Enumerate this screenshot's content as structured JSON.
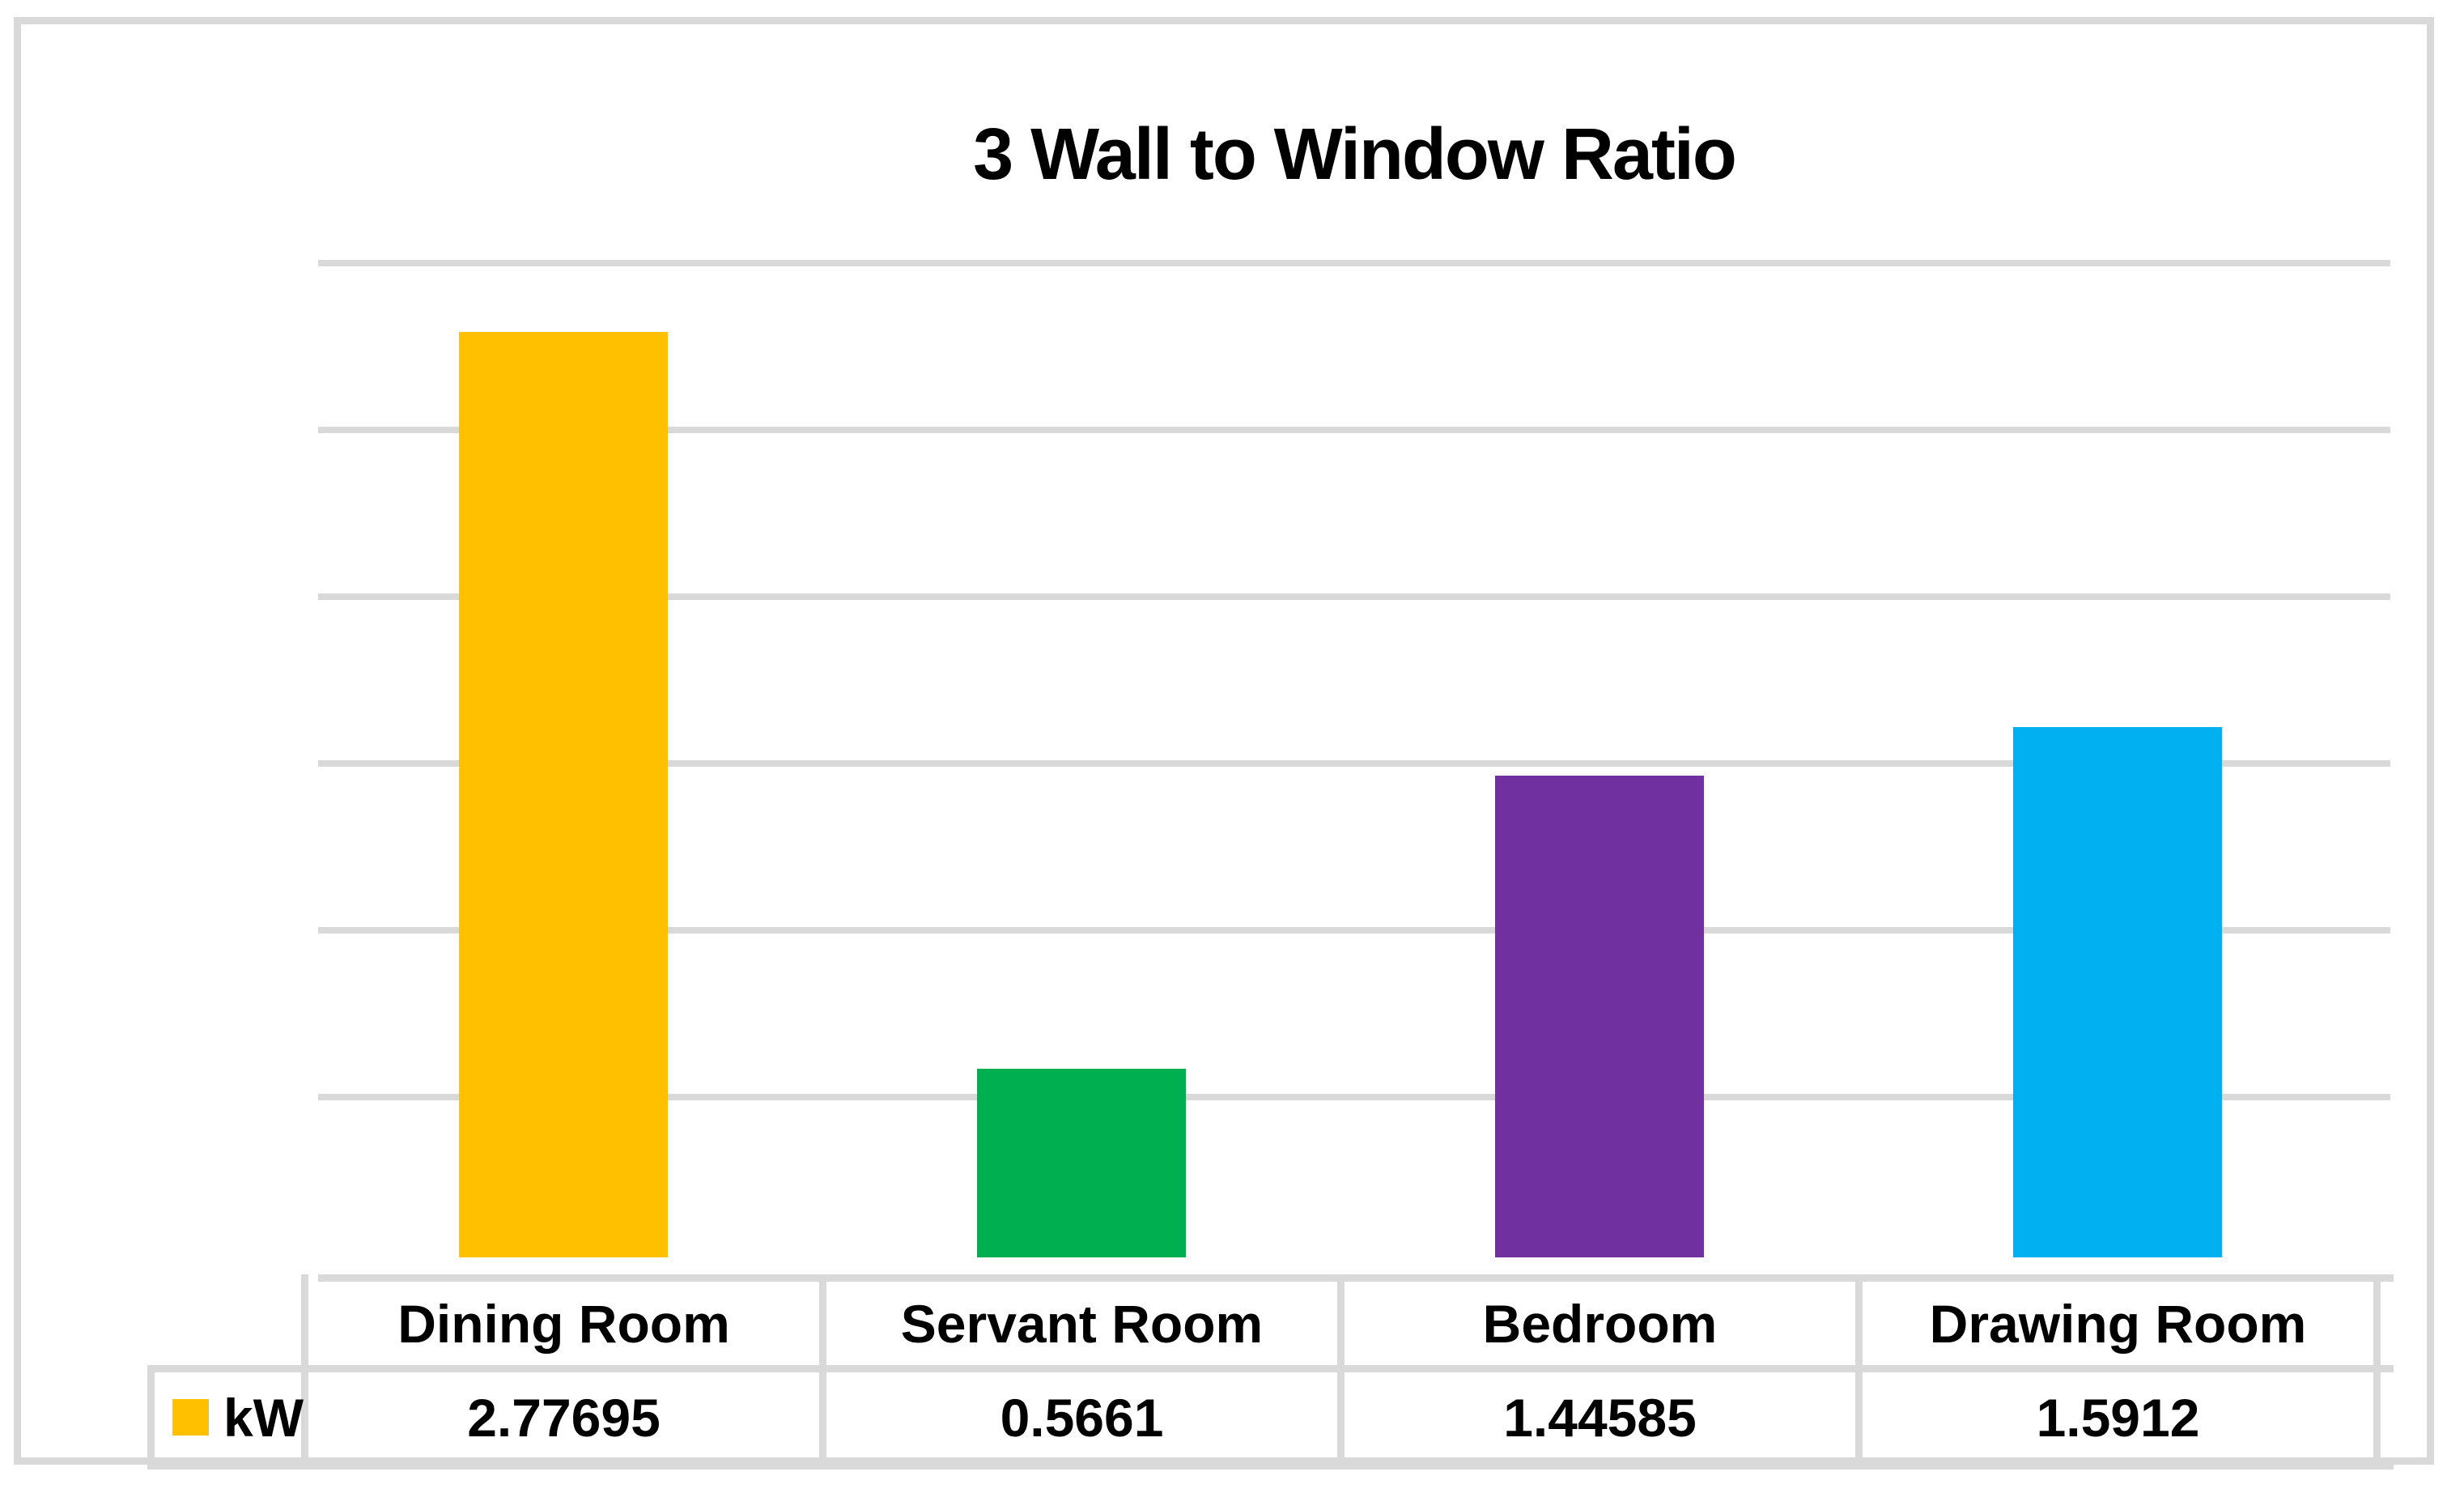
{
  "chart_data": {
    "type": "bar",
    "title": "3 Wall to Window Ratio",
    "categories": [
      "Dining Room",
      "Servant Room",
      "Bedroom",
      "Drawing Room"
    ],
    "series": [
      {
        "name": "kW",
        "values": [
          2.77695,
          0.5661,
          1.44585,
          1.5912
        ]
      }
    ],
    "colors": [
      "#FFC000",
      "#00B050",
      "#7030A0",
      "#00B0F0"
    ],
    "xlabel": "",
    "ylabel": "",
    "ylim": [
      0,
      3
    ],
    "gridline_interval": 0.5,
    "grid": true,
    "axis_labels_visible": false,
    "legend_position": "bottom-left-data-table",
    "gridline_color": "#D9D9D9",
    "border_color": "#D9D9D9",
    "data_table_shown": true
  }
}
